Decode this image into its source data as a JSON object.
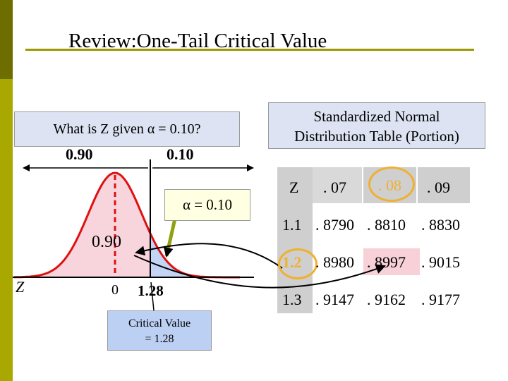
{
  "slide": {
    "title": "Review:One-Tail Critical Value",
    "question": "What is Z given α = 0.10?",
    "table_title_line1": "Standardized Normal",
    "table_title_line2": "Distribution Table (Portion)"
  },
  "curve": {
    "left_area_label": "0.90",
    "right_area_label": "0.10",
    "inside_area_label": "0.90",
    "alpha_label": "α  = 0.10",
    "axis_label": "Z",
    "zero_label": "0",
    "critical_z_label": "1.28",
    "critical_box_line1": "Critical Value",
    "critical_box_line2": "= 1.28",
    "left_fill_color": "#f8d4dc",
    "right_fill_color": "#c4d4f4"
  },
  "table": {
    "corner_label": "Z",
    "columns": [
      ". 07",
      ". 08",
      ". 09"
    ],
    "rows": [
      {
        "z": "1.1",
        "values": [
          ". 8790",
          ". 8810",
          ". 8830"
        ]
      },
      {
        "z": "1.2",
        "values": [
          ". 8980",
          ". 8997",
          ". 9015"
        ]
      },
      {
        "z": "1.3",
        "values": [
          ". 9147",
          ". 9162",
          ". 9177"
        ]
      }
    ],
    "highlight_color": "#f0b030"
  }
}
